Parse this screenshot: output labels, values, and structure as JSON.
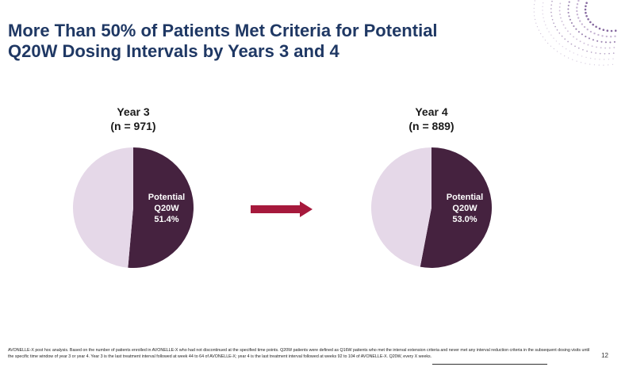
{
  "title_line1": "More Than 50% of Patients Met Criteria for Potential",
  "title_line2": "Q20W Dosing Intervals by Years 3 and 4",
  "colors": {
    "title": "#1f3864",
    "slice_dark": "#45223f",
    "slice_light": "#e5d8e8",
    "arrow": "#a6193c"
  },
  "chart_data": [
    {
      "type": "pie",
      "title_line1": "Year 3",
      "title_line2": "(n = 971)",
      "slices": [
        {
          "label_line1": "Potential",
          "label_line2": "Q20W",
          "value_label": "51.4%",
          "value": 51.4
        },
        {
          "label_line1": "",
          "label_line2": "",
          "value_label": "",
          "value": 48.6
        }
      ]
    },
    {
      "type": "pie",
      "title_line1": "Year 4",
      "title_line2": "(n = 889)",
      "slices": [
        {
          "label_line1": "Potential",
          "label_line2": "Q20W",
          "value_label": "53.0%",
          "value": 53.0
        },
        {
          "label_line1": "",
          "label_line2": "",
          "value_label": "",
          "value": 47.0
        }
      ]
    }
  ],
  "footnote": "AVONELLE-X post hoc analysis. Based on the number of patients enrolled in AVONELLE-X who had not discontinued at the specified time points. Q20W patients were defined as Q16W patients who met the interval extension criteria and never met any interval reduction criteria in the subsequent dosing visits until the specific time window of year 3 or year 4. Year 3 is the last treatment interval followed at week 44 to 64 of AVONELLE-X; year 4 is the last treatment interval followed at weeks 92 to 104 of AVONELLE-X. Q20W, every X weeks.",
  "page_number": "12"
}
